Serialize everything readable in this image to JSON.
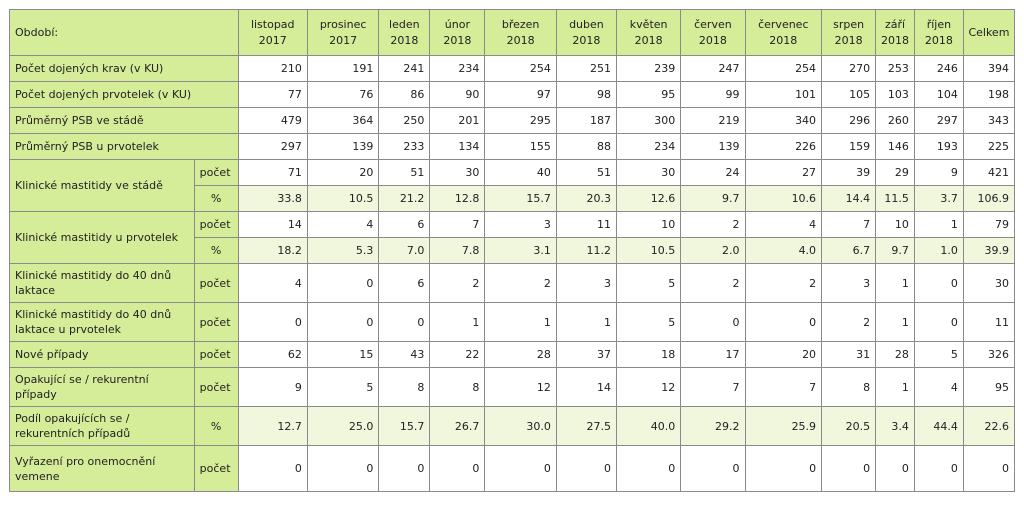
{
  "header": {
    "label": "Období:",
    "months": [
      [
        "listopad",
        "2017"
      ],
      [
        "prosinec",
        "2017"
      ],
      [
        "leden",
        "2018"
      ],
      [
        "únor",
        "2018"
      ],
      [
        "březen",
        "2018"
      ],
      [
        "duben",
        "2018"
      ],
      [
        "květen",
        "2018"
      ],
      [
        "červen",
        "2018"
      ],
      [
        "červenec",
        "2018"
      ],
      [
        "srpen",
        "2018"
      ],
      [
        "září",
        "2018"
      ],
      [
        "říjen",
        "2018"
      ]
    ],
    "total": "Celkem"
  },
  "rows": [
    {
      "label": "Počet dojených krav (v KU)",
      "sub": null,
      "values": [
        "210",
        "191",
        "241",
        "234",
        "254",
        "251",
        "239",
        "247",
        "254",
        "270",
        "253",
        "246",
        "394"
      ]
    },
    {
      "label": "Počet dojených prvotelek (v KU)",
      "sub": null,
      "values": [
        "77",
        "76",
        "86",
        "90",
        "97",
        "98",
        "95",
        "99",
        "101",
        "105",
        "103",
        "104",
        "198"
      ]
    },
    {
      "label": "Průměrný PSB ve stádě",
      "sub": null,
      "values": [
        "479",
        "364",
        "250",
        "201",
        "295",
        "187",
        "300",
        "219",
        "340",
        "296",
        "260",
        "297",
        "343"
      ]
    },
    {
      "label": "Průměrný PSB u prvotelek",
      "sub": null,
      "values": [
        "297",
        "139",
        "233",
        "134",
        "155",
        "88",
        "234",
        "139",
        "226",
        "159",
        "146",
        "193",
        "225"
      ]
    },
    {
      "label": "Klinické mastitidy ve stádě",
      "sub": "počet",
      "span": 2,
      "values": [
        "71",
        "20",
        "51",
        "30",
        "40",
        "51",
        "30",
        "24",
        "27",
        "39",
        "29",
        "9",
        "421"
      ]
    },
    {
      "label": null,
      "sub": "%",
      "alt": true,
      "values": [
        "33.8",
        "10.5",
        "21.2",
        "12.8",
        "15.7",
        "20.3",
        "12.6",
        "9.7",
        "10.6",
        "14.4",
        "11.5",
        "3.7",
        "106.9"
      ]
    },
    {
      "label": "Klinické mastitidy u prvotelek",
      "sub": "počet",
      "span": 2,
      "values": [
        "14",
        "4",
        "6",
        "7",
        "3",
        "11",
        "10",
        "2",
        "4",
        "7",
        "10",
        "1",
        "79"
      ]
    },
    {
      "label": null,
      "sub": "%",
      "alt": true,
      "values": [
        "18.2",
        "5.3",
        "7.0",
        "7.8",
        "3.1",
        "11.2",
        "10.5",
        "2.0",
        "4.0",
        "6.7",
        "9.7",
        "1.0",
        "39.9"
      ]
    },
    {
      "label": "Klinické mastitidy do 40 dnů laktace",
      "sub": "počet",
      "values": [
        "4",
        "0",
        "6",
        "2",
        "2",
        "3",
        "5",
        "2",
        "2",
        "3",
        "1",
        "0",
        "30"
      ]
    },
    {
      "label": "Klinické mastitidy do 40 dnů laktace u prvotelek",
      "sub": "počet",
      "values": [
        "0",
        "0",
        "0",
        "1",
        "1",
        "1",
        "5",
        "0",
        "0",
        "2",
        "1",
        "0",
        "11"
      ]
    },
    {
      "label": "Nové případy",
      "sub": "počet",
      "values": [
        "62",
        "15",
        "43",
        "22",
        "28",
        "37",
        "18",
        "17",
        "20",
        "31",
        "28",
        "5",
        "326"
      ]
    },
    {
      "label": "Opakující se / rekurentní případy",
      "sub": "počet",
      "values": [
        "9",
        "5",
        "8",
        "8",
        "12",
        "14",
        "12",
        "7",
        "7",
        "8",
        "1",
        "4",
        "95"
      ]
    },
    {
      "label": "Podíl opakujících se / rekurentních případů",
      "sub": "%",
      "alt": true,
      "values": [
        "12.7",
        "25.0",
        "15.7",
        "26.7",
        "30.0",
        "27.5",
        "40.0",
        "29.2",
        "25.9",
        "20.5",
        "3.4",
        "44.4",
        "22.6"
      ]
    },
    {
      "label": "Vyřazení pro onemocnění vemene",
      "sub": "počet",
      "values": [
        "0",
        "0",
        "0",
        "0",
        "0",
        "0",
        "0",
        "0",
        "0",
        "0",
        "0",
        "0",
        "0"
      ]
    }
  ]
}
